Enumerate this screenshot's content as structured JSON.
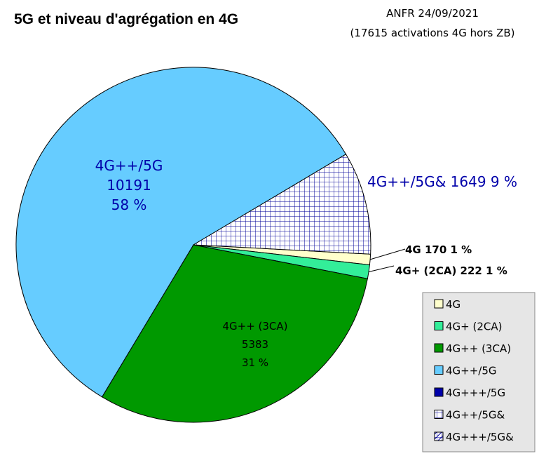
{
  "chart_data": {
    "type": "pie",
    "title": "5G et niveau d'agrégation en 4G",
    "subtitle": [
      "ANFR 24/09/2021",
      "(17615 activations 4G hors ZB)"
    ],
    "slices": [
      {
        "name": "4G",
        "value": 170,
        "percent": "1 %",
        "color": "#ffffcc",
        "pattern": "",
        "label": "4G 170 1 %"
      },
      {
        "name": "4G+ (2CA)",
        "value": 222,
        "percent": "1 %",
        "color": "#33ee99",
        "pattern": "",
        "label": "4G+ (2CA) 222 1 %"
      },
      {
        "name": "4G++ (3CA)",
        "value": 5383,
        "percent": "31 %",
        "color": "#009900",
        "pattern": "",
        "label_lines": [
          "4G++ (3CA)",
          "5383",
          "31 %"
        ]
      },
      {
        "name": "4G++/5G",
        "value": 10191,
        "percent": "58 %",
        "color": "#66ccff",
        "pattern": "",
        "label_lines": [
          "4G++/5G",
          "10191",
          "58 %"
        ]
      },
      {
        "name": "4G++/5G&",
        "value": 1649,
        "percent": "9 %",
        "color": "#000099",
        "pattern": "grid",
        "label": "4G++/5G& 1649 9 %"
      }
    ],
    "legend": {
      "position": "bottom-right",
      "entries": [
        {
          "name": "4G",
          "color": "#ffffcc",
          "pattern": ""
        },
        {
          "name": "4G+ (2CA)",
          "color": "#33ee99",
          "pattern": ""
        },
        {
          "name": "4G++ (3CA)",
          "color": "#009900",
          "pattern": ""
        },
        {
          "name": "4G++/5G",
          "color": "#66ccff",
          "pattern": ""
        },
        {
          "name": "4G+++/5G",
          "color": "#0000aa",
          "pattern": ""
        },
        {
          "name": "4G++/5G&",
          "color": "#000099",
          "pattern": "grid"
        },
        {
          "name": "4G+++/5G&",
          "color": "#000099",
          "pattern": "diag"
        }
      ]
    }
  }
}
